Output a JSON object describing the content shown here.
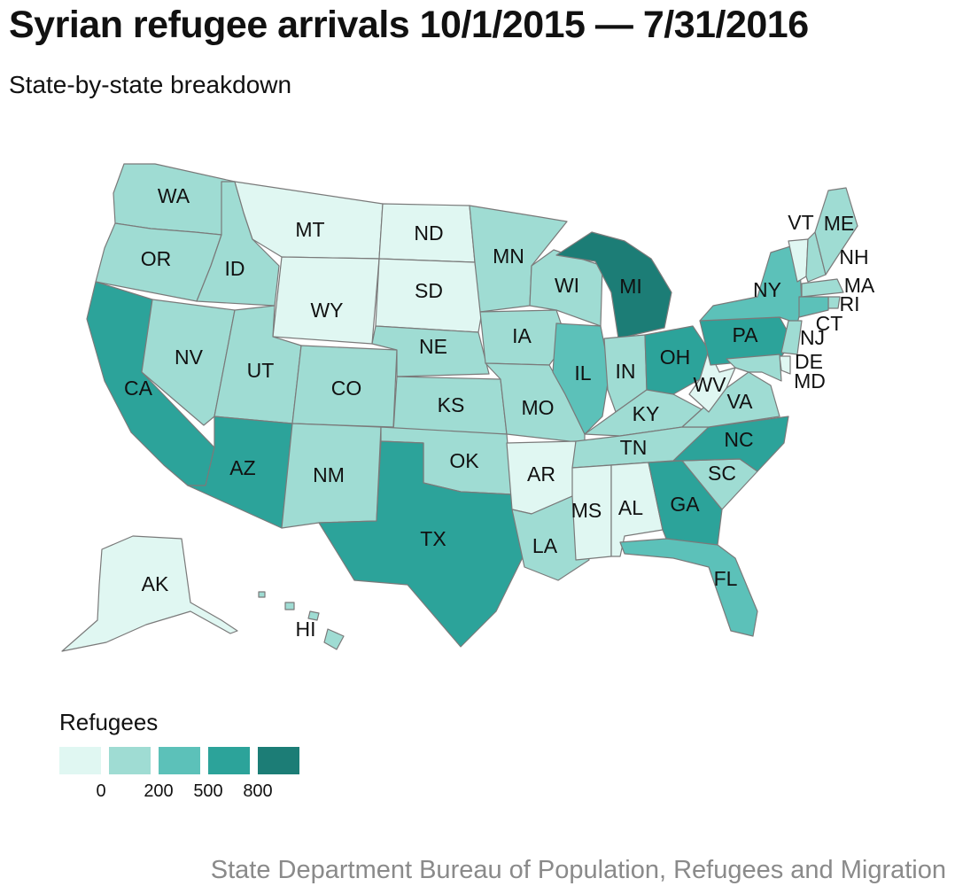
{
  "title": "Syrian refugee arrivals 10/1/2015 — 7/31/2016",
  "subtitle": "State-by-state breakdown",
  "source": "State Department Bureau of Population, Refugees and Migration",
  "legend": {
    "title": "Refugees",
    "colors": [
      "#e0f7f2",
      "#9fdcd3",
      "#5cc1b9",
      "#2ca39a",
      "#1c7d76"
    ],
    "ticks": [
      "0",
      "200",
      "500",
      "800"
    ]
  },
  "colors": {
    "c0": "#e0f7f2",
    "c1": "#9fdcd3",
    "c2": "#5cc1b9",
    "c3": "#2ca39a",
    "c4": "#1c7d76"
  },
  "states": {
    "WA": {
      "label": "WA",
      "bin": 1
    },
    "OR": {
      "label": "OR",
      "bin": 1
    },
    "CA": {
      "label": "CA",
      "bin": 3
    },
    "ID": {
      "label": "ID",
      "bin": 1
    },
    "NV": {
      "label": "NV",
      "bin": 1
    },
    "MT": {
      "label": "MT",
      "bin": 0
    },
    "WY": {
      "label": "WY",
      "bin": 0
    },
    "UT": {
      "label": "UT",
      "bin": 1
    },
    "AZ": {
      "label": "AZ",
      "bin": 3
    },
    "CO": {
      "label": "CO",
      "bin": 1
    },
    "NM": {
      "label": "NM",
      "bin": 1
    },
    "ND": {
      "label": "ND",
      "bin": 0
    },
    "SD": {
      "label": "SD",
      "bin": 0
    },
    "NE": {
      "label": "NE",
      "bin": 1
    },
    "KS": {
      "label": "KS",
      "bin": 1
    },
    "OK": {
      "label": "OK",
      "bin": 1
    },
    "TX": {
      "label": "TX",
      "bin": 3
    },
    "MN": {
      "label": "MN",
      "bin": 1
    },
    "IA": {
      "label": "IA",
      "bin": 1
    },
    "MO": {
      "label": "MO",
      "bin": 1
    },
    "AR": {
      "label": "AR",
      "bin": 0
    },
    "LA": {
      "label": "LA",
      "bin": 1
    },
    "WI": {
      "label": "WI",
      "bin": 1
    },
    "IL": {
      "label": "IL",
      "bin": 2
    },
    "MI": {
      "label": "MI",
      "bin": 4
    },
    "IN": {
      "label": "IN",
      "bin": 1
    },
    "OH": {
      "label": "OH",
      "bin": 3
    },
    "KY": {
      "label": "KY",
      "bin": 1
    },
    "TN": {
      "label": "TN",
      "bin": 1
    },
    "MS": {
      "label": "MS",
      "bin": 0
    },
    "AL": {
      "label": "AL",
      "bin": 0
    },
    "GA": {
      "label": "GA",
      "bin": 3
    },
    "FL": {
      "label": "FL",
      "bin": 2
    },
    "SC": {
      "label": "SC",
      "bin": 1
    },
    "NC": {
      "label": "NC",
      "bin": 3
    },
    "VA": {
      "label": "VA",
      "bin": 1
    },
    "WV": {
      "label": "WV",
      "bin": 0
    },
    "PA": {
      "label": "PA",
      "bin": 3
    },
    "NY": {
      "label": "NY",
      "bin": 2
    },
    "VT": {
      "label": "VT",
      "bin": 0
    },
    "NH": {
      "label": "NH",
      "bin": 1
    },
    "ME": {
      "label": "ME",
      "bin": 1
    },
    "MA": {
      "label": "MA",
      "bin": 1
    },
    "RI": {
      "label": "RI",
      "bin": 1
    },
    "CT": {
      "label": "CT",
      "bin": 2
    },
    "NJ": {
      "label": "NJ",
      "bin": 1
    },
    "DE": {
      "label": "DE",
      "bin": 0
    },
    "MD": {
      "label": "MD",
      "bin": 1
    },
    "AK": {
      "label": "AK",
      "bin": 0
    },
    "HI": {
      "label": "HI",
      "bin": 1
    }
  }
}
